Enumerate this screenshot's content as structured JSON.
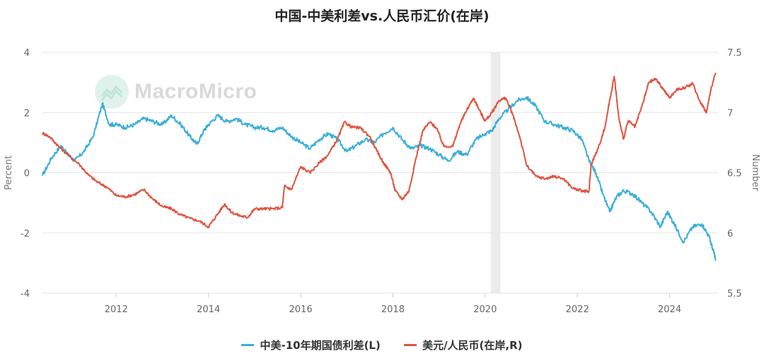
{
  "title": "中国-中美利差vs.人民币汇价(在岸)",
  "watermark": "MacroMicro",
  "colors": {
    "spread": "#3aaed8",
    "fx": "#e0533f",
    "shade": "#ececec",
    "grid": "#e6e6e6"
  },
  "legend": [
    {
      "label": "中美-10年期国债利差(L)",
      "color": "#3aaed8"
    },
    {
      "label": "美元/人民币(在岸,R)",
      "color": "#e0533f"
    }
  ],
  "chart_data": {
    "type": "line",
    "title": "中国-中美利差vs.人民币汇价(在岸)",
    "xlim": [
      2010.4,
      2025.05
    ],
    "x_ticks": [
      2012,
      2014,
      2016,
      2018,
      2020,
      2022,
      2024
    ],
    "left_axis": {
      "label": "Percent",
      "ylim": [
        -4,
        4
      ],
      "ticks": [
        -4,
        -2,
        0,
        2,
        4
      ]
    },
    "right_axis": {
      "label": "Number",
      "ylim": [
        5.5,
        7.5
      ],
      "ticks": [
        5.5,
        6,
        6.5,
        7,
        7.5
      ]
    },
    "shaded_periods": [
      [
        2020.12,
        2020.33
      ]
    ],
    "grid": true,
    "legend_position": "bottom",
    "series": [
      {
        "name": "中美-10年期国债利差(L)",
        "axis": "left",
        "points": [
          [
            2010.4,
            -0.1
          ],
          [
            2010.6,
            0.5
          ],
          [
            2010.8,
            0.9
          ],
          [
            2010.95,
            0.6
          ],
          [
            2011.1,
            0.4
          ],
          [
            2011.3,
            0.7
          ],
          [
            2011.5,
            1.2
          ],
          [
            2011.7,
            2.3
          ],
          [
            2011.85,
            1.6
          ],
          [
            2012.0,
            1.6
          ],
          [
            2012.2,
            1.5
          ],
          [
            2012.4,
            1.6
          ],
          [
            2012.6,
            1.8
          ],
          [
            2012.8,
            1.7
          ],
          [
            2013.0,
            1.6
          ],
          [
            2013.2,
            1.9
          ],
          [
            2013.4,
            1.6
          ],
          [
            2013.6,
            1.2
          ],
          [
            2013.75,
            0.95
          ],
          [
            2013.9,
            1.4
          ],
          [
            2014.0,
            1.6
          ],
          [
            2014.2,
            1.9
          ],
          [
            2014.4,
            1.7
          ],
          [
            2014.6,
            1.8
          ],
          [
            2014.8,
            1.6
          ],
          [
            2015.0,
            1.5
          ],
          [
            2015.2,
            1.5
          ],
          [
            2015.4,
            1.4
          ],
          [
            2015.6,
            1.5
          ],
          [
            2015.8,
            1.2
          ],
          [
            2016.0,
            1.0
          ],
          [
            2016.2,
            0.8
          ],
          [
            2016.4,
            1.1
          ],
          [
            2016.6,
            1.3
          ],
          [
            2016.8,
            1.1
          ],
          [
            2017.0,
            0.7
          ],
          [
            2017.2,
            0.9
          ],
          [
            2017.4,
            1.1
          ],
          [
            2017.6,
            1.0
          ],
          [
            2017.8,
            1.3
          ],
          [
            2018.0,
            1.5
          ],
          [
            2018.2,
            1.1
          ],
          [
            2018.4,
            0.8
          ],
          [
            2018.6,
            0.9
          ],
          [
            2018.8,
            0.8
          ],
          [
            2019.0,
            0.6
          ],
          [
            2019.2,
            0.4
          ],
          [
            2019.4,
            0.7
          ],
          [
            2019.6,
            0.6
          ],
          [
            2019.8,
            1.1
          ],
          [
            2020.0,
            1.3
          ],
          [
            2020.15,
            1.4
          ],
          [
            2020.3,
            1.8
          ],
          [
            2020.5,
            2.1
          ],
          [
            2020.7,
            2.4
          ],
          [
            2020.9,
            2.5
          ],
          [
            2021.1,
            2.2
          ],
          [
            2021.3,
            1.7
          ],
          [
            2021.5,
            1.6
          ],
          [
            2021.7,
            1.5
          ],
          [
            2021.9,
            1.4
          ],
          [
            2022.1,
            1.1
          ],
          [
            2022.25,
            0.4
          ],
          [
            2022.4,
            0.0
          ],
          [
            2022.55,
            -0.7
          ],
          [
            2022.7,
            -1.3
          ],
          [
            2022.85,
            -0.8
          ],
          [
            2023.0,
            -0.6
          ],
          [
            2023.2,
            -0.7
          ],
          [
            2023.4,
            -1.0
          ],
          [
            2023.6,
            -1.3
          ],
          [
            2023.8,
            -1.8
          ],
          [
            2023.95,
            -1.3
          ],
          [
            2024.1,
            -1.7
          ],
          [
            2024.3,
            -2.3
          ],
          [
            2024.5,
            -1.8
          ],
          [
            2024.7,
            -1.7
          ],
          [
            2024.85,
            -2.1
          ],
          [
            2024.95,
            -2.6
          ],
          [
            2025.0,
            -2.9
          ]
        ]
      },
      {
        "name": "美元/人民币(在岸,R)",
        "axis": "right",
        "points": [
          [
            2010.4,
            6.83
          ],
          [
            2010.55,
            6.8
          ],
          [
            2010.75,
            6.72
          ],
          [
            2010.95,
            6.65
          ],
          [
            2011.2,
            6.57
          ],
          [
            2011.4,
            6.48
          ],
          [
            2011.6,
            6.42
          ],
          [
            2011.8,
            6.38
          ],
          [
            2012.0,
            6.31
          ],
          [
            2012.2,
            6.3
          ],
          [
            2012.4,
            6.32
          ],
          [
            2012.6,
            6.36
          ],
          [
            2012.8,
            6.28
          ],
          [
            2013.0,
            6.22
          ],
          [
            2013.2,
            6.2
          ],
          [
            2013.4,
            6.15
          ],
          [
            2013.6,
            6.12
          ],
          [
            2013.8,
            6.1
          ],
          [
            2014.0,
            6.05
          ],
          [
            2014.15,
            6.13
          ],
          [
            2014.35,
            6.24
          ],
          [
            2014.5,
            6.17
          ],
          [
            2014.7,
            6.14
          ],
          [
            2014.85,
            6.13
          ],
          [
            2015.0,
            6.2
          ],
          [
            2015.2,
            6.2
          ],
          [
            2015.4,
            6.2
          ],
          [
            2015.6,
            6.21
          ],
          [
            2015.65,
            6.39
          ],
          [
            2015.8,
            6.36
          ],
          [
            2016.0,
            6.55
          ],
          [
            2016.2,
            6.5
          ],
          [
            2016.4,
            6.58
          ],
          [
            2016.6,
            6.65
          ],
          [
            2016.8,
            6.78
          ],
          [
            2016.95,
            6.92
          ],
          [
            2017.1,
            6.88
          ],
          [
            2017.3,
            6.87
          ],
          [
            2017.5,
            6.8
          ],
          [
            2017.65,
            6.68
          ],
          [
            2017.8,
            6.58
          ],
          [
            2017.95,
            6.5
          ],
          [
            2018.05,
            6.35
          ],
          [
            2018.2,
            6.28
          ],
          [
            2018.35,
            6.35
          ],
          [
            2018.5,
            6.62
          ],
          [
            2018.65,
            6.85
          ],
          [
            2018.8,
            6.92
          ],
          [
            2018.95,
            6.87
          ],
          [
            2019.1,
            6.72
          ],
          [
            2019.3,
            6.72
          ],
          [
            2019.45,
            6.9
          ],
          [
            2019.6,
            7.02
          ],
          [
            2019.75,
            7.12
          ],
          [
            2019.9,
            7.0
          ],
          [
            2020.0,
            6.93
          ],
          [
            2020.15,
            7.0
          ],
          [
            2020.3,
            7.1
          ],
          [
            2020.45,
            7.12
          ],
          [
            2020.6,
            6.98
          ],
          [
            2020.75,
            6.8
          ],
          [
            2020.9,
            6.56
          ],
          [
            2021.1,
            6.47
          ],
          [
            2021.3,
            6.45
          ],
          [
            2021.5,
            6.47
          ],
          [
            2021.7,
            6.45
          ],
          [
            2021.9,
            6.37
          ],
          [
            2022.1,
            6.35
          ],
          [
            2022.25,
            6.34
          ],
          [
            2022.3,
            6.57
          ],
          [
            2022.45,
            6.7
          ],
          [
            2022.6,
            6.88
          ],
          [
            2022.7,
            7.1
          ],
          [
            2022.8,
            7.3
          ],
          [
            2022.9,
            6.95
          ],
          [
            2023.0,
            6.78
          ],
          [
            2023.1,
            6.93
          ],
          [
            2023.25,
            6.88
          ],
          [
            2023.4,
            7.05
          ],
          [
            2023.55,
            7.25
          ],
          [
            2023.7,
            7.28
          ],
          [
            2023.85,
            7.2
          ],
          [
            2024.0,
            7.12
          ],
          [
            2024.15,
            7.19
          ],
          [
            2024.35,
            7.21
          ],
          [
            2024.5,
            7.24
          ],
          [
            2024.65,
            7.1
          ],
          [
            2024.8,
            7.0
          ],
          [
            2024.9,
            7.2
          ],
          [
            2025.0,
            7.33
          ]
        ]
      }
    ]
  }
}
